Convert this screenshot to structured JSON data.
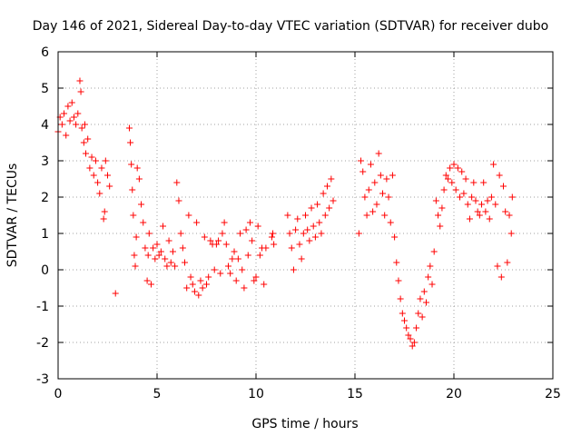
{
  "chart_data": {
    "type": "scatter",
    "title": "Day 146 of 2021, Sidereal Day-to-day VTEC variation (SDTVAR) for receiver dubo",
    "xlabel": "GPS time / hours",
    "ylabel": "SDTVAR / TECUs",
    "xlim": [
      0,
      25
    ],
    "ylim": [
      -3,
      6
    ],
    "xticks": [
      0,
      5,
      10,
      15,
      20,
      25
    ],
    "yticks": [
      -3,
      -2,
      -1,
      0,
      1,
      2,
      3,
      4,
      5,
      6
    ],
    "grid": true,
    "marker": "plus",
    "color": "#ff0000",
    "series": [
      {
        "name": "SDTVAR",
        "points": [
          [
            0.0,
            3.8
          ],
          [
            0.1,
            4.2
          ],
          [
            0.2,
            4.0
          ],
          [
            0.3,
            4.3
          ],
          [
            0.4,
            3.7
          ],
          [
            0.5,
            4.5
          ],
          [
            0.6,
            4.1
          ],
          [
            0.7,
            4.6
          ],
          [
            0.8,
            4.2
          ],
          [
            0.9,
            4.0
          ],
          [
            1.0,
            4.3
          ],
          [
            1.1,
            5.2
          ],
          [
            1.15,
            4.9
          ],
          [
            1.2,
            3.9
          ],
          [
            1.3,
            3.5
          ],
          [
            1.35,
            4.0
          ],
          [
            1.4,
            3.2
          ],
          [
            1.5,
            3.6
          ],
          [
            1.6,
            2.8
          ],
          [
            1.7,
            3.1
          ],
          [
            1.8,
            2.6
          ],
          [
            1.9,
            3.0
          ],
          [
            2.0,
            2.4
          ],
          [
            2.1,
            2.1
          ],
          [
            2.2,
            2.8
          ],
          [
            2.3,
            1.4
          ],
          [
            2.35,
            1.6
          ],
          [
            2.4,
            3.0
          ],
          [
            2.5,
            2.6
          ],
          [
            2.6,
            2.3
          ],
          [
            2.9,
            -0.65
          ],
          [
            3.6,
            3.9
          ],
          [
            3.65,
            3.5
          ],
          [
            3.7,
            2.9
          ],
          [
            3.75,
            2.2
          ],
          [
            3.8,
            1.5
          ],
          [
            3.85,
            0.4
          ],
          [
            3.9,
            0.1
          ],
          [
            3.95,
            0.9
          ],
          [
            4.0,
            2.8
          ],
          [
            4.1,
            2.5
          ],
          [
            4.2,
            1.8
          ],
          [
            4.3,
            1.3
          ],
          [
            4.4,
            0.6
          ],
          [
            4.5,
            -0.3
          ],
          [
            4.55,
            0.4
          ],
          [
            4.6,
            1.0
          ],
          [
            4.7,
            -0.4
          ],
          [
            4.8,
            0.6
          ],
          [
            4.9,
            0.3
          ],
          [
            5.0,
            0.7
          ],
          [
            5.1,
            0.4
          ],
          [
            5.2,
            0.5
          ],
          [
            5.3,
            1.2
          ],
          [
            5.4,
            0.3
          ],
          [
            5.5,
            0.1
          ],
          [
            5.6,
            0.8
          ],
          [
            5.7,
            0.2
          ],
          [
            5.8,
            0.5
          ],
          [
            5.9,
            0.1
          ],
          [
            6.0,
            2.4
          ],
          [
            6.1,
            1.9
          ],
          [
            6.2,
            1.0
          ],
          [
            6.3,
            0.6
          ],
          [
            6.4,
            0.2
          ],
          [
            6.5,
            -0.5
          ],
          [
            6.6,
            1.5
          ],
          [
            6.7,
            -0.2
          ],
          [
            6.8,
            -0.4
          ],
          [
            6.9,
            -0.6
          ],
          [
            7.0,
            1.3
          ],
          [
            7.1,
            -0.7
          ],
          [
            7.2,
            -0.3
          ],
          [
            7.3,
            -0.5
          ],
          [
            7.4,
            0.9
          ],
          [
            7.5,
            -0.4
          ],
          [
            7.6,
            -0.2
          ],
          [
            7.7,
            0.8
          ],
          [
            7.8,
            0.7
          ],
          [
            7.9,
            0.0
          ],
          [
            8.0,
            0.7
          ],
          [
            8.1,
            0.8
          ],
          [
            8.2,
            -0.1
          ],
          [
            8.3,
            1.0
          ],
          [
            8.4,
            1.3
          ],
          [
            8.5,
            0.7
          ],
          [
            8.6,
            0.1
          ],
          [
            8.7,
            -0.1
          ],
          [
            8.8,
            0.3
          ],
          [
            8.9,
            0.5
          ],
          [
            9.0,
            -0.3
          ],
          [
            9.1,
            0.3
          ],
          [
            9.2,
            1.0
          ],
          [
            9.3,
            0.0
          ],
          [
            9.4,
            -0.5
          ],
          [
            9.5,
            1.1
          ],
          [
            9.6,
            0.4
          ],
          [
            9.7,
            1.3
          ],
          [
            9.8,
            0.8
          ],
          [
            9.9,
            -0.3
          ],
          [
            10.0,
            -0.2
          ],
          [
            10.1,
            1.2
          ],
          [
            10.2,
            0.4
          ],
          [
            10.3,
            0.6
          ],
          [
            10.4,
            -0.4
          ],
          [
            10.5,
            0.6
          ],
          [
            10.8,
            0.9
          ],
          [
            10.85,
            1.0
          ],
          [
            10.9,
            0.7
          ],
          [
            11.6,
            1.5
          ],
          [
            11.7,
            1.0
          ],
          [
            11.8,
            0.6
          ],
          [
            11.9,
            0.0
          ],
          [
            12.0,
            1.1
          ],
          [
            12.1,
            1.4
          ],
          [
            12.2,
            0.7
          ],
          [
            12.3,
            0.3
          ],
          [
            12.4,
            1.0
          ],
          [
            12.5,
            1.5
          ],
          [
            12.6,
            1.1
          ],
          [
            12.7,
            0.8
          ],
          [
            12.8,
            1.7
          ],
          [
            12.9,
            1.2
          ],
          [
            13.0,
            0.9
          ],
          [
            13.1,
            1.8
          ],
          [
            13.2,
            1.3
          ],
          [
            13.3,
            1.0
          ],
          [
            13.4,
            2.1
          ],
          [
            13.5,
            1.5
          ],
          [
            13.6,
            2.3
          ],
          [
            13.7,
            1.7
          ],
          [
            13.8,
            2.5
          ],
          [
            13.9,
            1.9
          ],
          [
            15.2,
            1.0
          ],
          [
            15.3,
            3.0
          ],
          [
            15.4,
            2.7
          ],
          [
            15.5,
            2.0
          ],
          [
            15.6,
            1.5
          ],
          [
            15.7,
            2.2
          ],
          [
            15.8,
            2.9
          ],
          [
            15.9,
            1.6
          ],
          [
            16.0,
            2.4
          ],
          [
            16.1,
            1.8
          ],
          [
            16.2,
            3.2
          ],
          [
            16.3,
            2.6
          ],
          [
            16.4,
            2.1
          ],
          [
            16.5,
            1.5
          ],
          [
            16.6,
            2.5
          ],
          [
            16.7,
            2.0
          ],
          [
            16.8,
            1.3
          ],
          [
            16.9,
            2.6
          ],
          [
            17.0,
            0.9
          ],
          [
            17.1,
            0.2
          ],
          [
            17.2,
            -0.3
          ],
          [
            17.3,
            -0.8
          ],
          [
            17.4,
            -1.2
          ],
          [
            17.5,
            -1.4
          ],
          [
            17.6,
            -1.6
          ],
          [
            17.7,
            -1.8
          ],
          [
            17.8,
            -1.9
          ],
          [
            17.9,
            -2.1
          ],
          [
            18.0,
            -2.0
          ],
          [
            18.1,
            -1.6
          ],
          [
            18.2,
            -1.2
          ],
          [
            18.3,
            -0.8
          ],
          [
            18.4,
            -1.3
          ],
          [
            18.5,
            -0.6
          ],
          [
            18.6,
            -0.9
          ],
          [
            18.7,
            -0.2
          ],
          [
            18.8,
            0.1
          ],
          [
            18.9,
            -0.4
          ],
          [
            19.0,
            0.5
          ],
          [
            19.1,
            1.9
          ],
          [
            19.2,
            1.5
          ],
          [
            19.3,
            1.2
          ],
          [
            19.4,
            1.7
          ],
          [
            19.5,
            2.2
          ],
          [
            19.6,
            2.6
          ],
          [
            19.7,
            2.5
          ],
          [
            19.8,
            2.8
          ],
          [
            19.9,
            2.4
          ],
          [
            20.0,
            2.9
          ],
          [
            20.1,
            2.2
          ],
          [
            20.2,
            2.8
          ],
          [
            20.3,
            2.0
          ],
          [
            20.4,
            2.7
          ],
          [
            20.5,
            2.1
          ],
          [
            20.6,
            2.5
          ],
          [
            20.7,
            1.8
          ],
          [
            20.8,
            1.4
          ],
          [
            20.9,
            2.0
          ],
          [
            21.0,
            2.4
          ],
          [
            21.1,
            1.9
          ],
          [
            21.2,
            1.6
          ],
          [
            21.3,
            1.5
          ],
          [
            21.4,
            1.8
          ],
          [
            21.5,
            2.4
          ],
          [
            21.6,
            1.6
          ],
          [
            21.7,
            1.9
          ],
          [
            21.8,
            1.4
          ],
          [
            21.9,
            2.0
          ],
          [
            22.0,
            2.9
          ],
          [
            22.1,
            1.8
          ],
          [
            22.2,
            0.1
          ],
          [
            22.3,
            2.6
          ],
          [
            22.4,
            -0.2
          ],
          [
            22.5,
            2.3
          ],
          [
            22.6,
            1.6
          ],
          [
            22.7,
            0.2
          ],
          [
            22.8,
            1.5
          ],
          [
            22.9,
            1.0
          ],
          [
            22.95,
            2.0
          ]
        ]
      }
    ]
  }
}
